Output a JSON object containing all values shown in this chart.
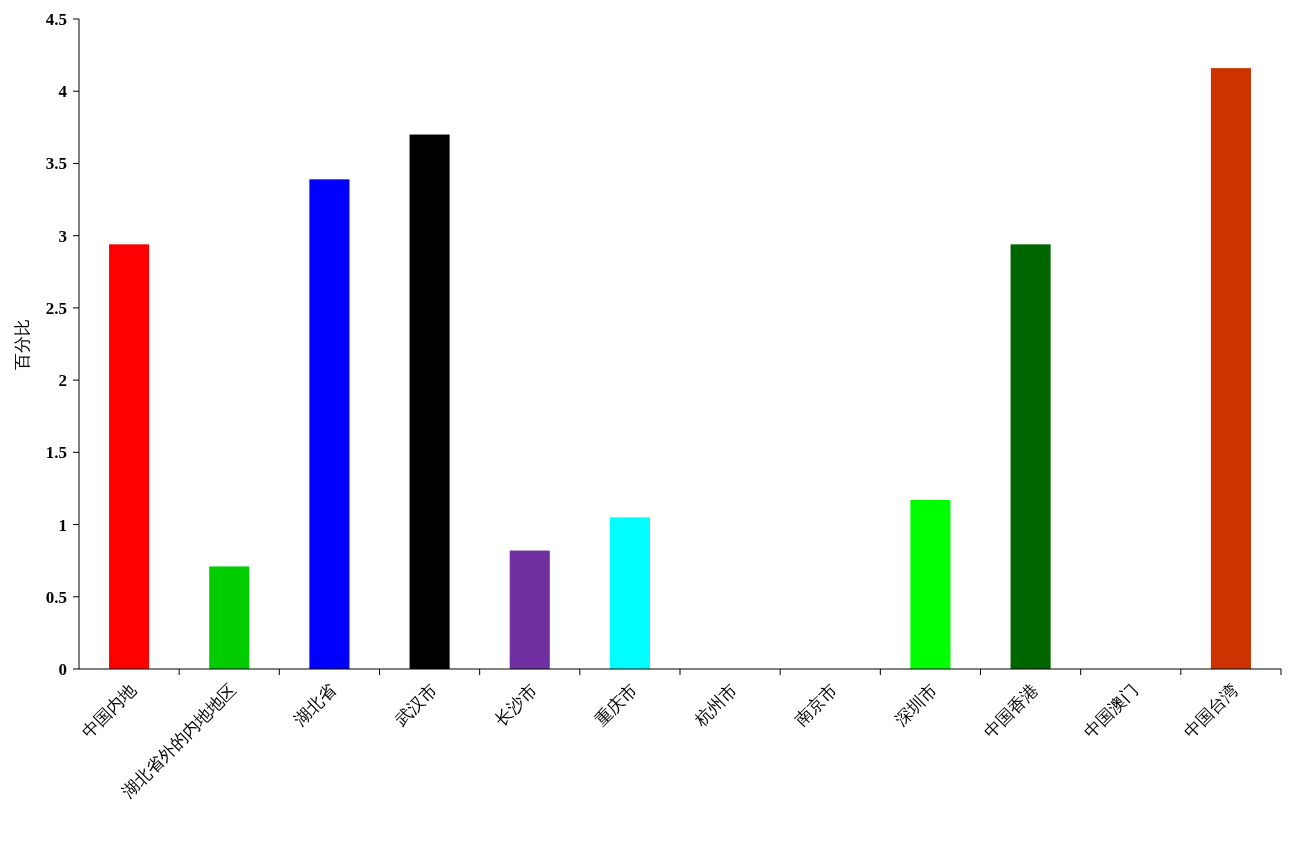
{
  "chart_data": {
    "type": "bar",
    "ylabel": "百分比",
    "categories": [
      "中国内地",
      "湖北省外的内地地区",
      "湖北省",
      "武汉市",
      "长沙市",
      "重庆市",
      "杭州市",
      "南京市",
      "深圳市",
      "中国香港",
      "中国澳门",
      "中国台湾"
    ],
    "values": [
      2.94,
      0.71,
      3.39,
      3.7,
      0.82,
      1.05,
      0,
      0,
      1.17,
      2.94,
      0,
      4.16
    ],
    "colors": [
      "#ff0000",
      "#00cc00",
      "#0000ff",
      "#000000",
      "#7030a0",
      "#00ffff",
      "#000000",
      "#000000",
      "#00ff00",
      "#006600",
      "#000000",
      "#cc3300"
    ],
    "ylim": [
      0,
      4.5
    ],
    "yticks": [
      0,
      0.5,
      1,
      1.5,
      2,
      2.5,
      3,
      3.5,
      4,
      4.5
    ],
    "grid": false
  }
}
